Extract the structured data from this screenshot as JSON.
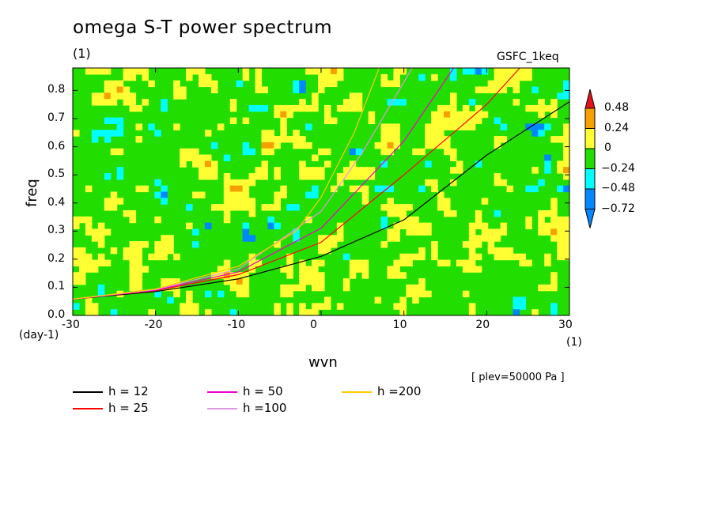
{
  "title": "omega S-T power spectrum",
  "subtitle_unit": "(1)",
  "model": "GSFC_1keq",
  "level_label": "[ plev=50000 Pa ]",
  "chart_data": {
    "type": "heatmap",
    "xlabel": "wvn",
    "ylabel": "freq",
    "x_unit": "(1)",
    "y_unit": "(day-1)",
    "xlim": [
      -30,
      30
    ],
    "ylim": [
      0,
      0.88
    ],
    "xticks": [
      "-30",
      "-20",
      "-10",
      "0",
      "10",
      "20",
      "30"
    ],
    "yticks": [
      "0.0",
      "0.1",
      "0.2",
      "0.3",
      "0.4",
      "0.5",
      "0.6",
      "0.7",
      "0.8"
    ],
    "colorbar": {
      "levels": [
        "0.48",
        "0.24",
        "0",
        "−0.24",
        "−0.48",
        "−0.72"
      ],
      "colors": [
        "#e8101a",
        "#f5a000",
        "#ffff33",
        "#22dd00",
        "#00ffff",
        "#0088ff"
      ]
    },
    "dominant_value_range": [
      -0.24,
      0.24
    ],
    "dispersion_curves": [
      {
        "label": "h = 12",
        "color": "#000000",
        "points": [
          [
            -30,
            0.058
          ],
          [
            -20,
            0.085
          ],
          [
            -10,
            0.13
          ],
          [
            0,
            0.21
          ],
          [
            10,
            0.34
          ],
          [
            20,
            0.57
          ],
          [
            30,
            0.76
          ]
        ]
      },
      {
        "label": "h = 25",
        "color": "#ff0000",
        "points": [
          [
            -30,
            0.058
          ],
          [
            -20,
            0.088
          ],
          [
            -10,
            0.145
          ],
          [
            0,
            0.26
          ],
          [
            10,
            0.5
          ],
          [
            20,
            0.75
          ],
          [
            24,
            0.88
          ]
        ]
      },
      {
        "label": "h = 50",
        "color": "#ee00cc",
        "points": [
          [
            -30,
            0.058
          ],
          [
            -20,
            0.09
          ],
          [
            -10,
            0.155
          ],
          [
            0,
            0.31
          ],
          [
            10,
            0.62
          ],
          [
            16,
            0.88
          ]
        ]
      },
      {
        "label": "h =100",
        "color": "#dd99dd",
        "points": [
          [
            -30,
            0.058
          ],
          [
            -20,
            0.092
          ],
          [
            -10,
            0.165
          ],
          [
            0,
            0.37
          ],
          [
            5,
            0.58
          ],
          [
            11,
            0.88
          ]
        ]
      },
      {
        "label": "h =200",
        "color": "#ffcc00",
        "points": [
          [
            -30,
            0.058
          ],
          [
            -20,
            0.094
          ],
          [
            -10,
            0.175
          ],
          [
            -3,
            0.3
          ],
          [
            0,
            0.42
          ],
          [
            4,
            0.65
          ],
          [
            7,
            0.88
          ]
        ]
      }
    ]
  },
  "legend": [
    {
      "label": "h = 12",
      "color": "#000000"
    },
    {
      "label": "h = 25",
      "color": "#ff0000"
    },
    {
      "label": "h = 50",
      "color": "#ee00cc"
    },
    {
      "label": "h =100",
      "color": "#dd99dd"
    },
    {
      "label": "h =200",
      "color": "#ffcc00"
    }
  ]
}
